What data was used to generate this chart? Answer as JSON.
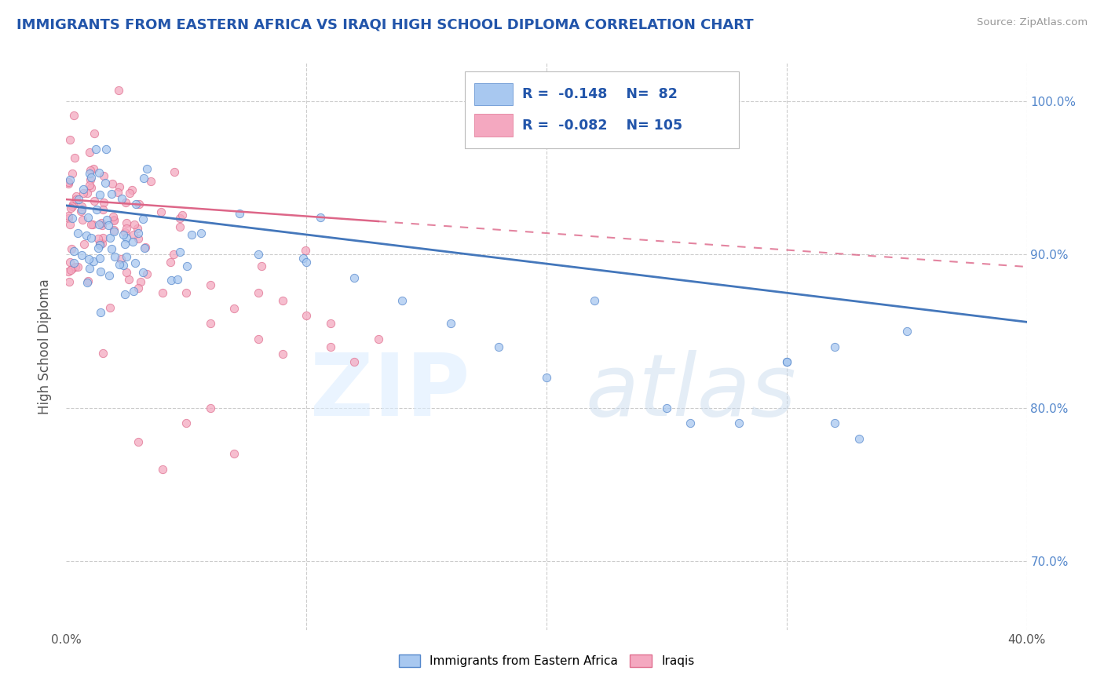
{
  "title": "IMMIGRANTS FROM EASTERN AFRICA VS IRAQI HIGH SCHOOL DIPLOMA CORRELATION CHART",
  "title_color": "#2255aa",
  "source_text": "Source: ZipAtlas.com",
  "ylabel": "High School Diploma",
  "xlim": [
    0.0,
    0.4
  ],
  "ylim": [
    0.655,
    1.025
  ],
  "legend_blue_label": "Immigrants from Eastern Africa",
  "legend_pink_label": "Iraqis",
  "R_blue": -0.148,
  "N_blue": 82,
  "R_pink": -0.082,
  "N_pink": 105,
  "blue_color": "#a8c8f0",
  "pink_color": "#f4a8c0",
  "blue_edge_color": "#5588cc",
  "pink_edge_color": "#e07090",
  "blue_line_color": "#4477bb",
  "pink_line_color": "#dd6688",
  "background_color": "#ffffff"
}
